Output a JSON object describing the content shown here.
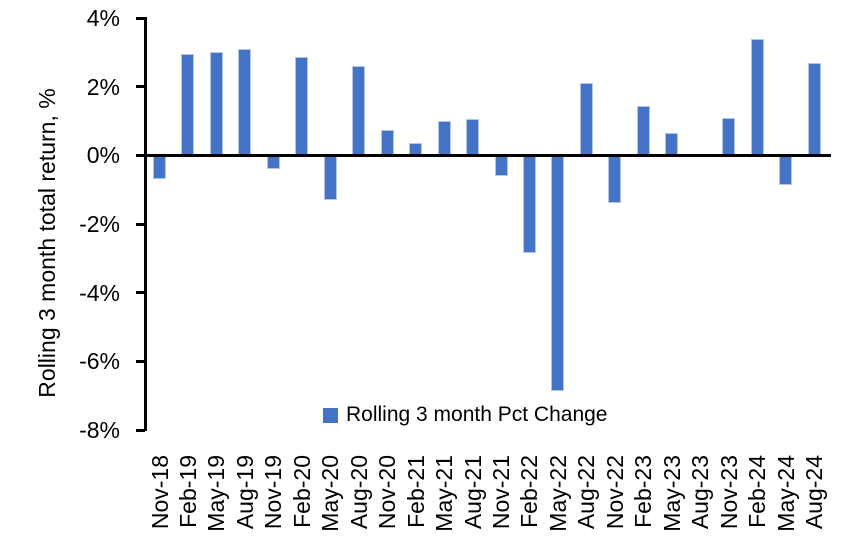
{
  "chart_data": {
    "type": "bar",
    "title": "",
    "ylabel": "Rolling 3 month total return, %",
    "xlabel": "",
    "series_name": "Rolling 3 month Pct Change",
    "legend_position": "bottom-center-inside",
    "grid": false,
    "ylim": [
      -8,
      4
    ],
    "yticks": [
      {
        "value": 4,
        "label": "4%"
      },
      {
        "value": 2,
        "label": "2%"
      },
      {
        "value": 0,
        "label": "0%"
      },
      {
        "value": -2,
        "label": "-2%"
      },
      {
        "value": -4,
        "label": "-4%"
      },
      {
        "value": -6,
        "label": "-6%"
      },
      {
        "value": -8,
        "label": "-8%"
      }
    ],
    "categories": [
      "Nov-18",
      "Feb-19",
      "May-19",
      "Aug-19",
      "Nov-19",
      "Feb-20",
      "May-20",
      "Aug-20",
      "Nov-20",
      "Feb-21",
      "May-21",
      "Aug-21",
      "Nov-21",
      "Feb-22",
      "May-22",
      "Aug-22",
      "Nov-22",
      "Feb-23",
      "May-23",
      "Aug-23",
      "Nov-23",
      "Feb-24",
      "May-24",
      "Aug-24"
    ],
    "values": [
      -0.7,
      2.95,
      3.0,
      3.1,
      -0.4,
      2.85,
      -1.3,
      2.6,
      0.75,
      0.35,
      1.0,
      1.05,
      -0.6,
      -2.85,
      -6.85,
      2.1,
      -1.4,
      1.45,
      0.65,
      0,
      1.1,
      3.4,
      -0.85,
      2.7
    ],
    "colors": {
      "bar_fill": "#4472C4",
      "bar_edge": "#B4C7E7",
      "axis": "#000000",
      "text": "#000000",
      "background": "#FFFFFF"
    }
  }
}
